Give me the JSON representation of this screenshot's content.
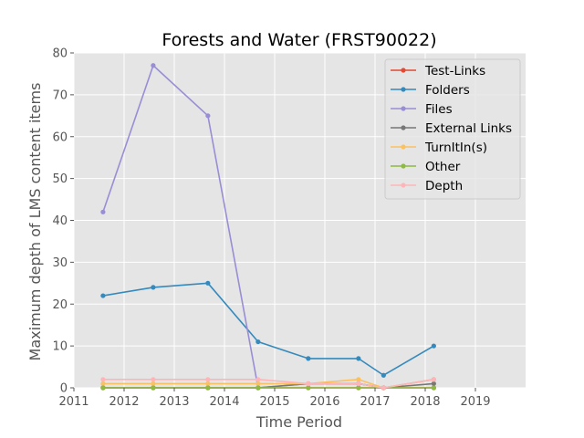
{
  "chart_data": {
    "type": "line",
    "title": "Forests and Water (FRST90022)",
    "xlabel": "Time Period",
    "ylabel": "Maximum depth of LMS content items",
    "xlim": [
      2011.0,
      2020.0
    ],
    "ylim": [
      0,
      80
    ],
    "xticks": [
      "2011",
      "2012",
      "2013",
      "2014",
      "2015",
      "2016",
      "2017",
      "2018",
      "2019"
    ],
    "yticks": [
      "0",
      "10",
      "20",
      "30",
      "40",
      "50",
      "60",
      "70",
      "80"
    ],
    "x": [
      2011.58,
      2012.58,
      2013.67,
      2014.67,
      2015.67,
      2016.67,
      2017.17,
      2018.17
    ],
    "grid": true,
    "legend_position": "upper-right",
    "series": [
      {
        "name": "Test-Links",
        "color": "#e24a33",
        "values": [
          0,
          0,
          0,
          0,
          0,
          0,
          0,
          0
        ]
      },
      {
        "name": "Folders",
        "color": "#348abd",
        "values": [
          22,
          24,
          25,
          11,
          7,
          7,
          3,
          10
        ]
      },
      {
        "name": "Files",
        "color": "#988ed5",
        "values": [
          42,
          77,
          65,
          0,
          1,
          1,
          0,
          2
        ]
      },
      {
        "name": "External Links",
        "color": "#777777",
        "values": [
          0,
          0,
          0,
          0,
          1,
          1,
          0,
          1
        ]
      },
      {
        "name": "TurnItIn(s)",
        "color": "#fbc15e",
        "values": [
          1,
          1,
          1,
          1,
          1,
          2,
          0,
          2
        ]
      },
      {
        "name": "Other",
        "color": "#8eba42",
        "values": [
          0,
          0,
          0,
          0,
          0,
          0,
          0,
          0
        ]
      },
      {
        "name": "Depth",
        "color": "#ffb5b8",
        "values": [
          2,
          2,
          2,
          2,
          1,
          1,
          0,
          2
        ]
      }
    ]
  }
}
